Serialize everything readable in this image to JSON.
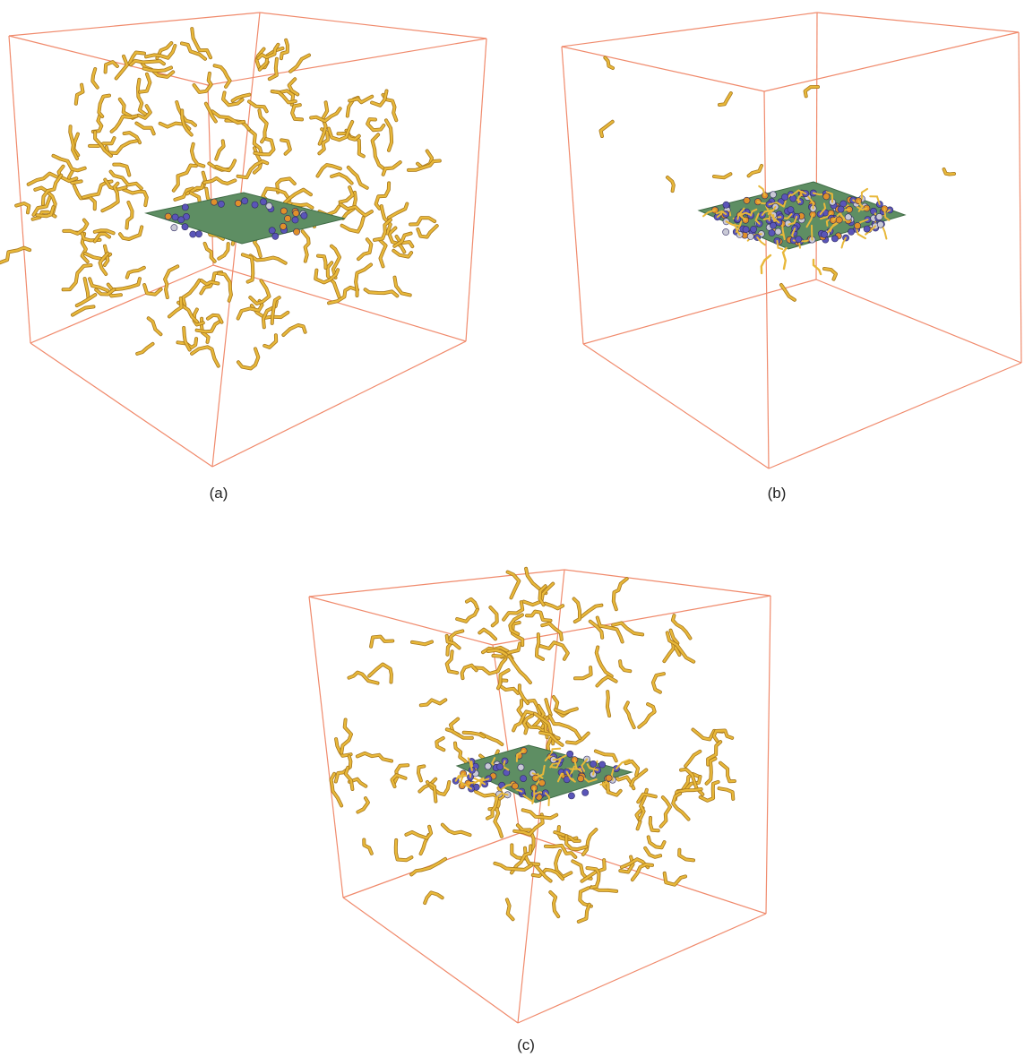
{
  "panels": [
    {
      "id": "a",
      "label": "(a)"
    },
    {
      "id": "b",
      "label": "(b)"
    },
    {
      "id": "c",
      "label": "(c)"
    }
  ],
  "colors": {
    "background": "#ffffff",
    "box_edges": "#f08a6c",
    "chains": "#e8b83a",
    "chain_shadow": "#a8781c",
    "sheet": "#5e8e63",
    "sheet_edge": "#3f6b45",
    "bead_blue": "#5a55b8",
    "bead_grey": "#c9c9d6",
    "bead_orange": "#e0902a"
  }
}
